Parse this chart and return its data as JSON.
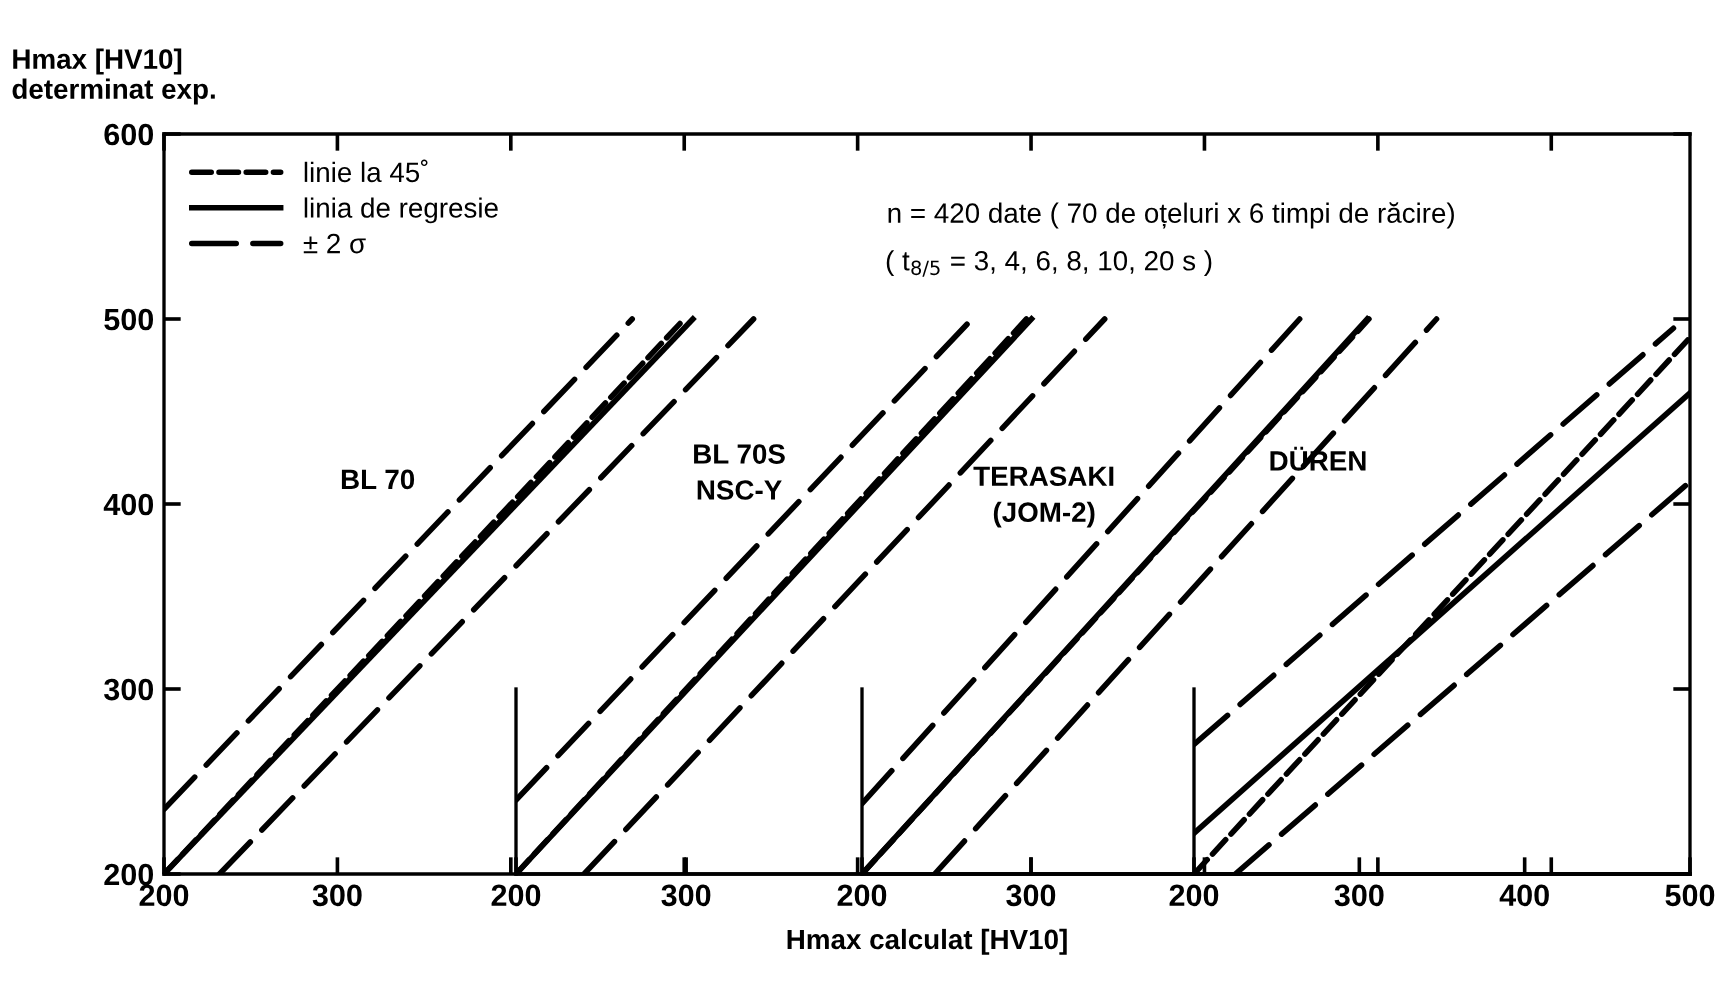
{
  "chart_data": [
    {
      "type": "line",
      "ylabel": "Hmax [HV10]\ndeterminat exp.",
      "xlabel": "Hmax calculat [HV10]",
      "xlim": [
        200,
        1080
      ],
      "ylim": [
        200,
        600
      ],
      "xticks": [
        200,
        300,
        {
          "value": 400,
          "label": null
        },
        {
          "value": 500,
          "label": null
        },
        {
          "value": 600,
          "label": null
        },
        {
          "value": 700,
          "label": null
        },
        {
          "value": 800,
          "label": null
        },
        {
          "value": 900,
          "label": null
        },
        {
          "value": 1000,
          "label": null
        }
      ],
      "yticks": [
        200,
        300,
        400,
        500,
        600
      ],
      "legend": "top left",
      "grid": false,
      "annotations": [
        "n = 420 date ( 70 de oțeluri x 6 timpi de răcire)",
        "( t$_{8/5}$ = 3, 4, 6, 8, 10, 20 s )",
        "BL 70"
      ],
      "series": [
        {
          "name": "linie la 45˚",
          "color": "#000000",
          "line_style": "dotted",
          "x": [
            200,
            500
          ],
          "values": [
            200,
            500
          ]
        },
        {
          "name": "linia de regresie",
          "color": "#000000",
          "line_style": "solid",
          "x": [
            200,
            505
          ],
          "values": [
            200,
            500
          ]
        },
        {
          "name": "± 2 σ",
          "color": "#000000",
          "line_style": "dashed",
          "x": [
            200,
            470
          ],
          "values": [
            235,
            500
          ]
        },
        {
          "color": "#000000",
          "line_style": "dashed",
          "x": [
            232,
            540
          ],
          "values": [
            200,
            500
          ]
        }
      ]
    },
    {
      "type": "line",
      "xlim": [
        200,
        890
      ],
      "ylim": [
        200,
        600
      ],
      "xticks": [
        200,
        300
      ],
      "tick_labels": "x",
      "annotations": [
        "BL 70S\nNSC-Y"
      ],
      "series": [
        {
          "color": "#000000",
          "line_style": "dotted",
          "x": [
            200,
            500
          ],
          "values": [
            200,
            500
          ]
        },
        {
          "color": "#000000",
          "line_style": "solid",
          "x": [
            200,
            503
          ],
          "values": [
            200,
            500
          ]
        },
        {
          "color": "#000000",
          "line_style": "dashed",
          "x": [
            200,
            468
          ],
          "values": [
            240,
            500
          ]
        },
        {
          "color": "#000000",
          "line_style": "dashed",
          "x": [
            240,
            546
          ],
          "values": [
            200,
            500
          ]
        }
      ]
    },
    {
      "type": "line",
      "xlim": [
        200,
        690
      ],
      "ylim": [
        200,
        600
      ],
      "xticks": [
        200,
        300
      ],
      "tick_labels": "x",
      "annotations": [
        "TERASAKI\n(JOM-2)"
      ],
      "series": [
        {
          "color": "#000000",
          "line_style": "dotted",
          "x": [
            200,
            500
          ],
          "values": [
            200,
            500
          ]
        },
        {
          "color": "#000000",
          "line_style": "solid",
          "x": [
            200,
            499
          ],
          "values": [
            200,
            500
          ]
        },
        {
          "color": "#000000",
          "line_style": "dashed",
          "x": [
            200,
            459
          ],
          "values": [
            238,
            500
          ]
        },
        {
          "color": "#000000",
          "line_style": "dashed",
          "x": [
            243,
            540
          ],
          "values": [
            200,
            500
          ]
        }
      ]
    },
    {
      "type": "line",
      "xlim": [
        200,
        500
      ],
      "ylim": [
        200,
        600
      ],
      "xticks": [
        200,
        300,
        400,
        500
      ],
      "tick_labels": "x",
      "annotations": [
        "DÜREN"
      ],
      "series": [
        {
          "color": "#000000",
          "line_style": "dotted",
          "x": [
            200,
            500
          ],
          "values": [
            200,
            490
          ]
        },
        {
          "color": "#000000",
          "line_style": "solid",
          "x": [
            200,
            500
          ],
          "values": [
            222,
            460
          ]
        },
        {
          "color": "#000000",
          "line_style": "dashed",
          "x": [
            200,
            490
          ],
          "values": [
            270,
            495
          ]
        },
        {
          "color": "#000000",
          "line_style": "dashed",
          "x": [
            225,
            500
          ],
          "values": [
            200,
            412
          ]
        }
      ]
    }
  ]
}
